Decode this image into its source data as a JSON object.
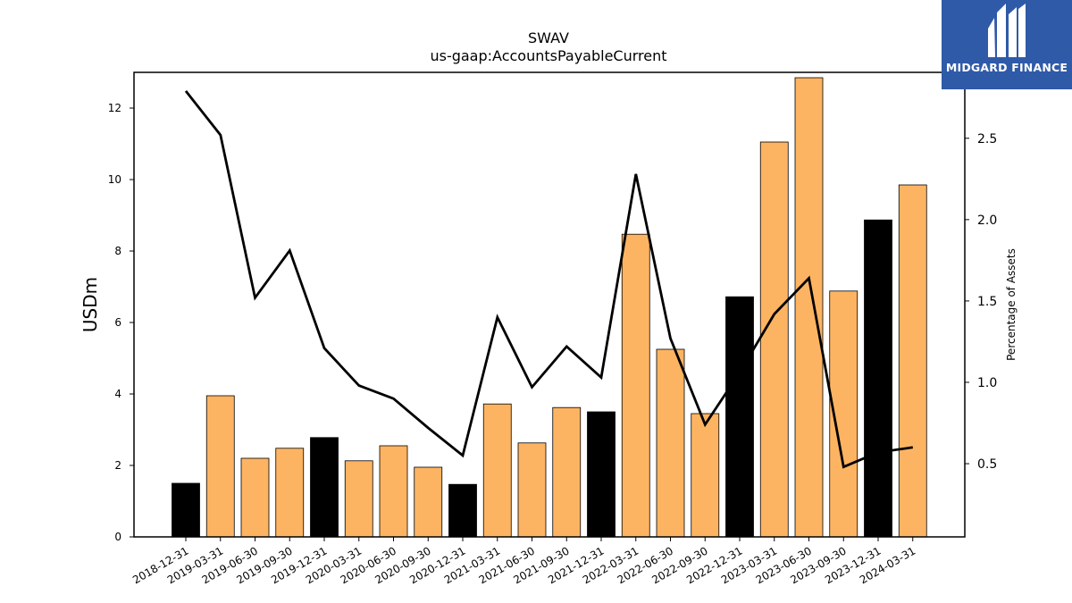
{
  "chart_data": {
    "type": "bar",
    "title": "SWAV",
    "subtitle": "us-gaap:AccountsPayableCurrent",
    "ylabel": "USDm",
    "y2label": "Percentage of Assets",
    "ylim": [
      0,
      13
    ],
    "y2lim": [
      0.05,
      2.905
    ],
    "yticks": [
      0,
      2,
      4,
      6,
      8,
      10,
      12
    ],
    "y2ticks": [
      "0.5",
      "1.0",
      "1.5",
      "2.0",
      "2.5"
    ],
    "categories": [
      "2018-12-31",
      "2019-03-31",
      "2019-06-30",
      "2019-09-30",
      "2019-12-31",
      "2020-03-31",
      "2020-06-30",
      "2020-09-30",
      "2020-12-31",
      "2021-03-31",
      "2021-06-30",
      "2021-09-30",
      "2021-12-31",
      "2022-03-31",
      "2022-06-30",
      "2022-09-30",
      "2022-12-31",
      "2023-03-31",
      "2023-06-30",
      "2023-09-30",
      "2023-12-31",
      "2024-03-31"
    ],
    "series": [
      {
        "type": "bar",
        "values": [
          1.5,
          3.95,
          2.2,
          2.48,
          2.78,
          2.13,
          2.55,
          1.95,
          1.47,
          3.72,
          2.63,
          3.62,
          3.5,
          8.47,
          5.25,
          3.45,
          6.72,
          11.05,
          12.85,
          6.88,
          8.87,
          9.85
        ],
        "colors": [
          "#000000",
          "#fdb462",
          "#fdb462",
          "#fdb462",
          "#000000",
          "#fdb462",
          "#fdb462",
          "#fdb462",
          "#000000",
          "#fdb462",
          "#fdb462",
          "#fdb462",
          "#000000",
          "#fdb462",
          "#fdb462",
          "#fdb462",
          "#000000",
          "#fdb462",
          "#fdb462",
          "#fdb462",
          "#000000",
          "#fdb462"
        ]
      },
      {
        "type": "line",
        "axis": "right",
        "color": "#000000",
        "values": [
          2.79,
          2.52,
          1.52,
          1.81,
          1.21,
          0.98,
          0.9,
          0.72,
          0.55,
          1.4,
          0.97,
          1.22,
          1.03,
          2.28,
          1.27,
          0.74,
          1.06,
          1.42,
          1.64,
          0.48,
          0.57,
          0.6
        ]
      }
    ]
  },
  "logo": {
    "text": "MIDGARD FINANCE",
    "background": "#2f5aa8"
  }
}
